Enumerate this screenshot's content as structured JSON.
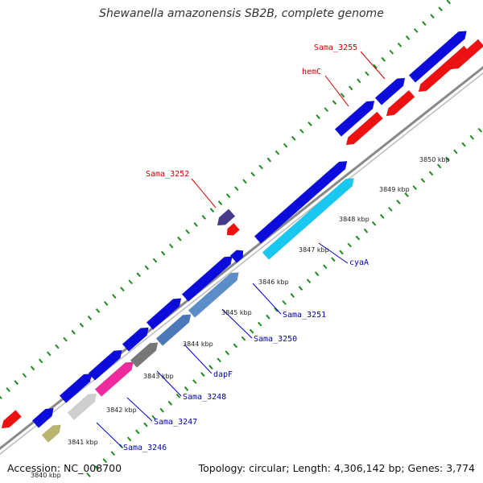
{
  "title": "Shewanella amazonensis SB2B, complete genome",
  "footer": {
    "accession": "Accession: NC_008700",
    "summary": "Topology: circular; Length: 4,306,142 bp; Genes: 3,774"
  },
  "colors": {
    "backbone": "#888888",
    "tick_marks": "#1f8a1f",
    "cds_forward": "#0b0bdc",
    "cds_reverse": "#ee1111",
    "label_forward": "#0000aa",
    "label_reverse": "#cc0000",
    "connector_forward": "#0000cc",
    "connector_reverse": "#cc0000"
  },
  "scale_labels": [
    "3840 kbp",
    "3841 kbp",
    "3842 kbp",
    "3843 kbp",
    "3844 kbp",
    "3845 kbp",
    "3846 kbp",
    "3847 kbp",
    "3848 kbp",
    "3849 kbp",
    "3850 kbp"
  ],
  "gene_labels": [
    {
      "id": "sama3255",
      "text": "Sama_3255",
      "strand": "reverse"
    },
    {
      "id": "hemc",
      "text": "hemC",
      "strand": "reverse"
    },
    {
      "id": "sama3252",
      "text": "Sama_3252",
      "strand": "reverse"
    },
    {
      "id": "cyaa",
      "text": "cyaA",
      "strand": "forward"
    },
    {
      "id": "sama3251",
      "text": "Sama_3251",
      "strand": "forward"
    },
    {
      "id": "sama3250",
      "text": "Sama_3250",
      "strand": "forward"
    },
    {
      "id": "dapf",
      "text": "dapF",
      "strand": "forward"
    },
    {
      "id": "sama3248",
      "text": "Sama_3248",
      "strand": "forward"
    },
    {
      "id": "sama3247",
      "text": "Sama_3247",
      "strand": "forward"
    },
    {
      "id": "sama3246",
      "text": "Sama_3246",
      "strand": "forward"
    }
  ]
}
